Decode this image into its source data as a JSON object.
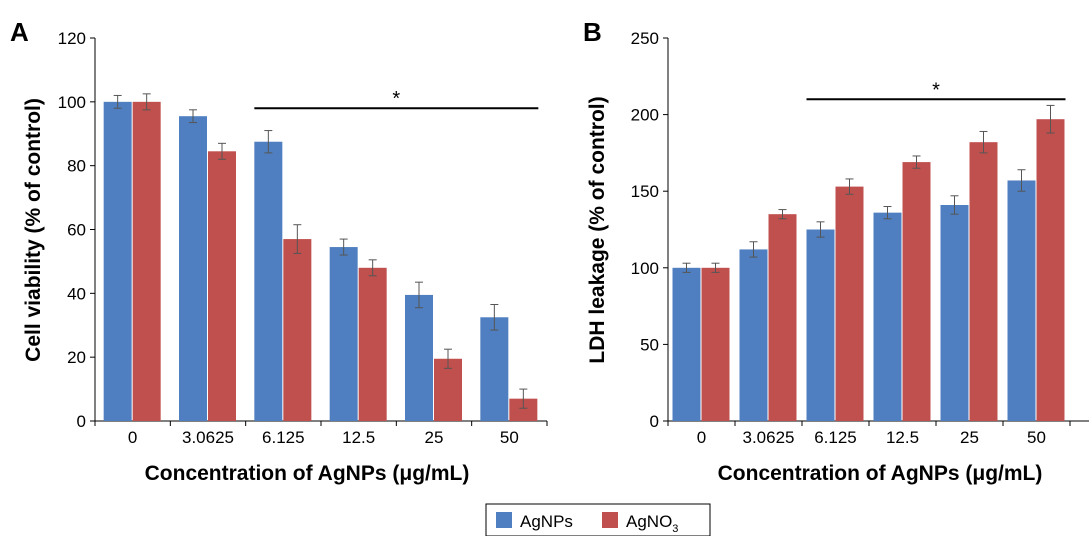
{
  "colors": {
    "agnps": "#4f7fc0",
    "agno3": "#c0504d",
    "axis": "#000000",
    "error": "#555555"
  },
  "legend": {
    "items": [
      {
        "label": "AgNPs",
        "color": "#4f7fc0"
      },
      {
        "label": "AgNO",
        "subscript": "3",
        "color": "#c0504d"
      }
    ]
  },
  "chart_data": [
    {
      "panel": "A",
      "type": "bar",
      "title": "",
      "xlabel": "Concentration of AgNPs (μg/mL)",
      "ylabel": "Cell viability (% of control)",
      "ylim": [
        0,
        120
      ],
      "yticks": [
        0,
        20,
        40,
        60,
        80,
        100,
        120
      ],
      "categories": [
        "0",
        "3.0625",
        "6.125",
        "12.5",
        "25",
        "50"
      ],
      "series": [
        {
          "name": "AgNPs",
          "values": [
            100,
            95.5,
            87.5,
            54.5,
            39.5,
            32.5
          ],
          "errors": [
            2,
            2,
            3.5,
            2.5,
            4,
            4
          ]
        },
        {
          "name": "AgNO3",
          "values": [
            100,
            84.5,
            57,
            48,
            19.5,
            7
          ],
          "errors": [
            2.5,
            2.5,
            4.5,
            2.5,
            3,
            3
          ]
        }
      ],
      "significance": {
        "label": "*",
        "from_category": 2,
        "to_category": 5,
        "y": 98
      }
    },
    {
      "panel": "B",
      "type": "bar",
      "title": "",
      "xlabel": "Concentration of AgNPs (μg/mL)",
      "ylabel": "LDH leakage (% of control)",
      "ylim": [
        0,
        250
      ],
      "yticks": [
        0,
        50,
        100,
        150,
        200,
        250
      ],
      "categories": [
        "0",
        "3.0625",
        "6.125",
        "12.5",
        "25",
        "50"
      ],
      "series": [
        {
          "name": "AgNPs",
          "values": [
            100,
            112,
            125,
            136,
            141,
            157
          ],
          "errors": [
            3,
            5,
            5,
            4,
            6,
            7
          ]
        },
        {
          "name": "AgNO3",
          "values": [
            100,
            135,
            153,
            169,
            182,
            197
          ],
          "errors": [
            3,
            3,
            5,
            4,
            7,
            9
          ]
        }
      ],
      "significance": {
        "label": "*",
        "from_category": 2,
        "to_category": 5,
        "y": 210
      }
    }
  ]
}
